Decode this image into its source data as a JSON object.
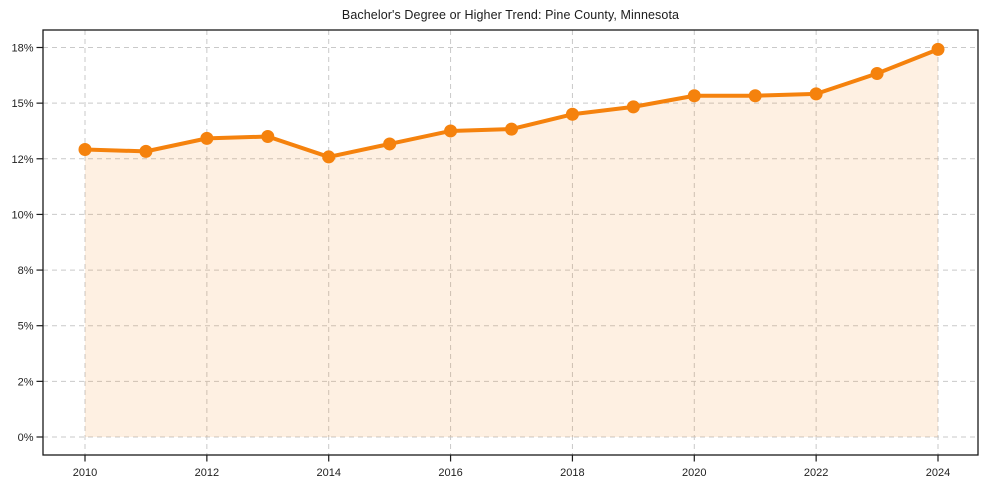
{
  "chart_data": {
    "type": "line",
    "title": "Bachelor's Degree or Higher Trend: Pine County, Minnesota",
    "x": [
      2010,
      2011,
      2012,
      2013,
      2014,
      2015,
      2016,
      2017,
      2018,
      2019,
      2020,
      2021,
      2022,
      2023,
      2024
    ],
    "series": [
      {
        "name": "Bachelor's Degree or Higher (%)",
        "values": [
          12.5,
          12.4,
          13.1,
          13.2,
          12.1,
          12.8,
          13.5,
          13.6,
          14.4,
          14.8,
          15.4,
          15.4,
          15.5,
          16.6,
          17.9
        ]
      }
    ],
    "xlabel": "",
    "ylabel": "",
    "xtick_labels": [
      "2010",
      "2012",
      "2014",
      "2016",
      "2018",
      "2020",
      "2022",
      "2024"
    ],
    "ytick_values": [
      18,
      15,
      12,
      10,
      8,
      5,
      2,
      0
    ],
    "ytick_labels": [
      "18%",
      "15%",
      "12%",
      "10%",
      "8%",
      "5%",
      "2%",
      "0%"
    ],
    "xlim": [
      2009.3,
      2024.65
    ],
    "grid": true,
    "legend_position": "none",
    "line_color": "#F5820D",
    "marker": "circle",
    "area_fill": true,
    "area_opacity": 0.12,
    "grid_color": "#C9C9C9",
    "spine_color": "#1A1A1A",
    "text_color": "#1F1F1F"
  }
}
